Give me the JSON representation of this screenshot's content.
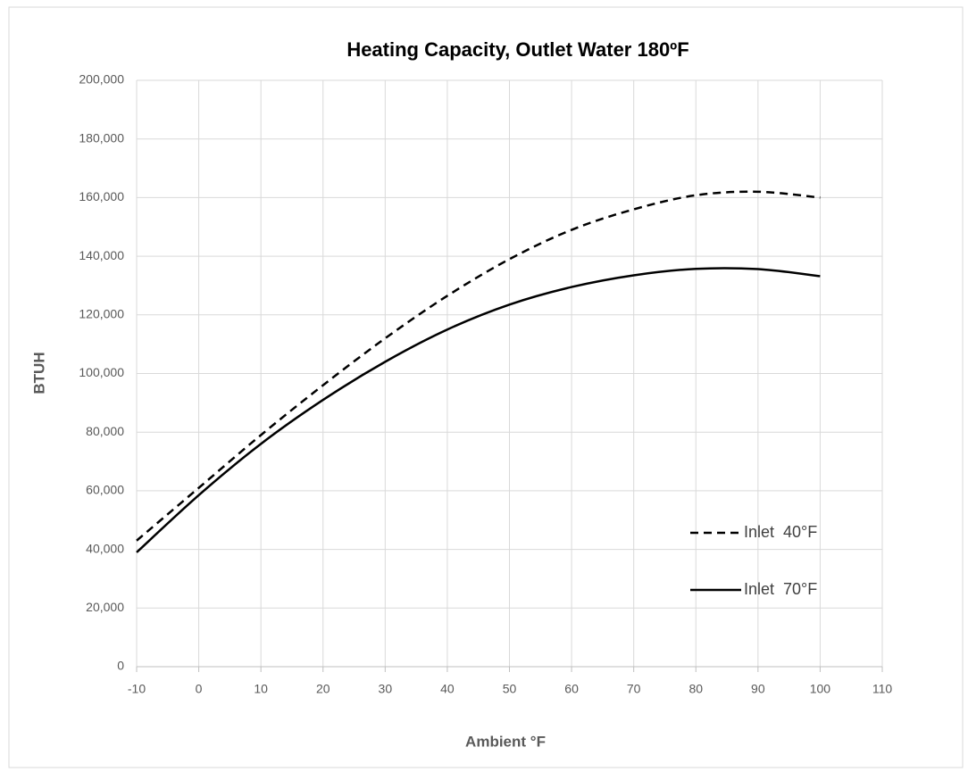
{
  "chart_data": {
    "type": "line",
    "title": "Heating Capacity, Outlet Water 180ºF",
    "x_label": "Ambient °F",
    "y_label": "BTUH",
    "x": [
      -10,
      0,
      10,
      20,
      30,
      40,
      50,
      60,
      70,
      80,
      90,
      100
    ],
    "series": [
      {
        "name": "Inlet  40°F",
        "color": "#000000",
        "dash": true,
        "values": [
          43000,
          61000,
          79000,
          96000,
          112000,
          126500,
          139000,
          149000,
          156000,
          160800,
          162000,
          160000
        ]
      },
      {
        "name": "Inlet  70°F",
        "color": "#000000",
        "dash": false,
        "values": [
          39000,
          58500,
          76000,
          91000,
          104000,
          115000,
          123500,
          129500,
          133500,
          135700,
          135600,
          133200
        ]
      }
    ],
    "xlim": [
      -10,
      110
    ],
    "xticks": [
      -10,
      0,
      10,
      20,
      30,
      40,
      50,
      60,
      70,
      80,
      90,
      100,
      110
    ],
    "ylim": [
      0,
      200000
    ],
    "yticks": [
      0,
      {
        "value": 20000,
        "label": "20,000"
      },
      {
        "value": 40000,
        "label": "40,000"
      },
      {
        "value": 60000,
        "label": "60,000"
      },
      {
        "value": 80000,
        "label": "80,000"
      },
      {
        "value": 100000,
        "label": "100,000"
      },
      {
        "value": 120000,
        "label": "120,000"
      },
      {
        "value": 140000,
        "label": "140,000"
      },
      {
        "value": 160000,
        "label": "160,000"
      },
      {
        "value": 180000,
        "label": "180,000"
      },
      {
        "value": 200000,
        "label": "200,000"
      }
    ],
    "grid": true,
    "legend": "lower right"
  }
}
